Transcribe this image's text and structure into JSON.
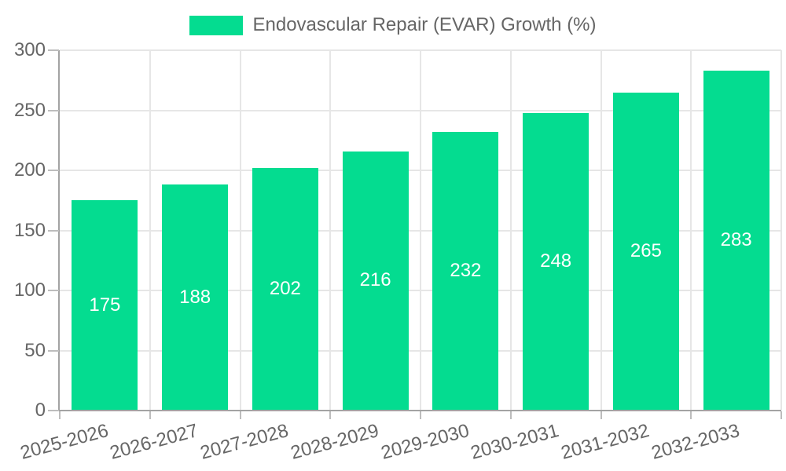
{
  "chart_data": {
    "type": "bar",
    "title": "Endovascular Repair (EVAR) Growth (%)",
    "legend_entries": [
      "Endovascular Repair (EVAR) Growth (%)"
    ],
    "legend_position": "top-center",
    "categories": [
      "2025-2026",
      "2026-2027",
      "2027-2028",
      "2028-2029",
      "2029-2030",
      "2030-2031",
      "2031-2032",
      "2032-2033"
    ],
    "values": [
      175,
      188,
      202,
      216,
      232,
      248,
      265,
      283
    ],
    "xlabel": "",
    "ylabel": "",
    "ylim": [
      0,
      300
    ],
    "yticks": [
      0,
      50,
      100,
      150,
      200,
      250,
      300
    ],
    "grid": true,
    "x_label_rotation_deg": -15
  },
  "colors": {
    "bar": "#04DC90",
    "bar_label_text": "#ffffff",
    "tick_text": "#666666",
    "grid": "#e6e6e6",
    "axis": "#a3a3a3",
    "tick_mark": "#bdbdbd",
    "background": "#ffffff"
  }
}
